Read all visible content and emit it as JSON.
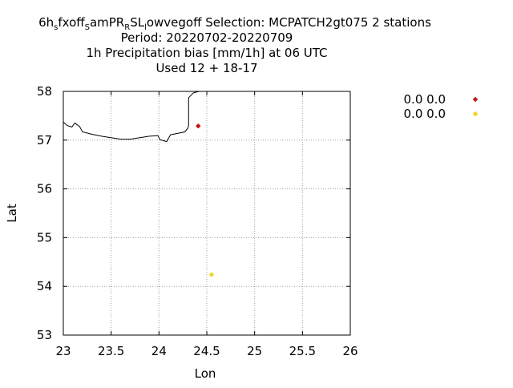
{
  "chart_data": {
    "type": "scatter",
    "title_lines": [
      {
        "segments": [
          {
            "text": "6h",
            "sub": false
          },
          {
            "text": "s",
            "sub": true
          },
          {
            "text": "fxoff",
            "sub": false
          },
          {
            "text": "S",
            "sub": true
          },
          {
            "text": "amPR",
            "sub": false
          },
          {
            "text": "R",
            "sub": true
          },
          {
            "text": "SL",
            "sub": false
          },
          {
            "text": "l",
            "sub": true
          },
          {
            "text": "owvegoff   Selection: MCPATCH2gt075      2 stations",
            "sub": false
          }
        ]
      },
      {
        "text": "Period: 20220702-20220709"
      },
      {
        "text": "1h Precipitation bias [mm/1h] at  06 UTC"
      },
      {
        "text": "Used  12 + 18-17"
      }
    ],
    "xlabel": "Lon",
    "ylabel": "Lat",
    "xlim": [
      23,
      26
    ],
    "ylim": [
      53,
      58
    ],
    "xticks": [
      "23",
      "23.5",
      "24",
      "24.5",
      "25",
      "25.5",
      "26"
    ],
    "yticks": [
      "53",
      "54",
      "55",
      "56",
      "57",
      "58"
    ],
    "grid": true,
    "legend_position": "right",
    "series": [
      {
        "name": "0.0 0.0",
        "color": "#cc1111",
        "points": [
          {
            "x": 24.41,
            "y": 57.29
          }
        ]
      },
      {
        "name": "0.0 0.0",
        "color": "#f2d21c",
        "points": [
          {
            "x": 24.55,
            "y": 54.24
          }
        ]
      }
    ],
    "coastline": [
      [
        23.0,
        57.37
      ],
      [
        23.04,
        57.3
      ],
      [
        23.09,
        57.27
      ],
      [
        23.12,
        57.35
      ],
      [
        23.17,
        57.28
      ],
      [
        23.2,
        57.17
      ],
      [
        23.3,
        57.12
      ],
      [
        23.4,
        57.08
      ],
      [
        23.5,
        57.05
      ],
      [
        23.6,
        57.02
      ],
      [
        23.7,
        57.02
      ],
      [
        23.8,
        57.05
      ],
      [
        23.9,
        57.08
      ],
      [
        23.99,
        57.09
      ],
      [
        24.01,
        57.01
      ],
      [
        24.08,
        56.97
      ],
      [
        24.1,
        57.04
      ],
      [
        24.12,
        57.11
      ],
      [
        24.2,
        57.14
      ],
      [
        24.27,
        57.17
      ],
      [
        24.3,
        57.24
      ],
      [
        24.31,
        57.3
      ],
      [
        24.31,
        57.87
      ],
      [
        24.36,
        57.97
      ],
      [
        24.42,
        58.0
      ]
    ]
  }
}
